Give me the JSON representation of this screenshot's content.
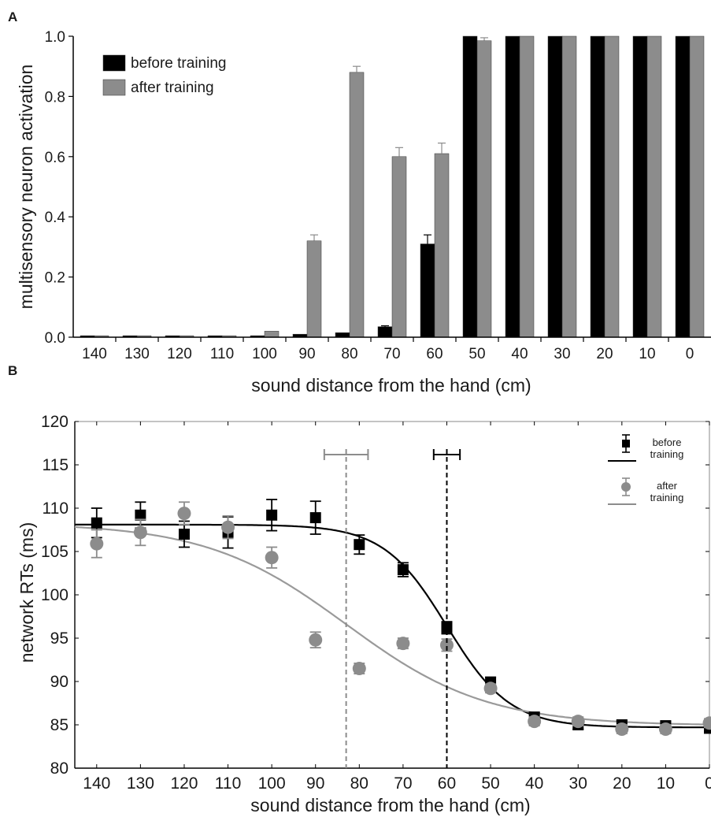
{
  "panels": {
    "a_label": "A",
    "b_label": "B"
  },
  "chart_data": [
    {
      "type": "bar",
      "panel": "A",
      "title": "",
      "xlabel": "sound distance from the hand (cm)",
      "ylabel": "multisensory neuron activation",
      "categories": [
        "140",
        "130",
        "120",
        "110",
        "100",
        "90",
        "80",
        "70",
        "60",
        "50",
        "40",
        "30",
        "20",
        "10",
        "0"
      ],
      "ylim": [
        0,
        1.0
      ],
      "yticks": [
        "0.0",
        "0.2",
        "0.4",
        "0.6",
        "0.8",
        "1.0"
      ],
      "legend_position": "top-left",
      "grid": false,
      "series": [
        {
          "name": "before training",
          "color": "#000000",
          "values": [
            0.005,
            0.005,
            0.005,
            0.005,
            0.005,
            0.01,
            0.015,
            0.035,
            0.31,
            1.0,
            1.0,
            1.0,
            1.0,
            1.0,
            1.0
          ],
          "errors": [
            0,
            0,
            0,
            0,
            0,
            0,
            0,
            0.003,
            0.03,
            0,
            0,
            0,
            0,
            0,
            0
          ]
        },
        {
          "name": "after training",
          "color": "#8c8c8c",
          "values": [
            0.005,
            0.005,
            0.005,
            0.005,
            0.02,
            0.32,
            0.88,
            0.6,
            0.61,
            0.985,
            1.0,
            1.0,
            1.0,
            1.0,
            1.0
          ],
          "errors": [
            0,
            0,
            0,
            0,
            0,
            0.02,
            0.02,
            0.03,
            0.035,
            0.01,
            0,
            0,
            0,
            0,
            0
          ]
        }
      ]
    },
    {
      "type": "scatter",
      "panel": "B",
      "title": "",
      "xlabel": "sound distance from the hand (cm)",
      "ylabel": "network RTs (ms)",
      "xlim": [
        145,
        0
      ],
      "ylim": [
        80,
        120
      ],
      "xticks": [
        "140",
        "130",
        "120",
        "110",
        "100",
        "90",
        "80",
        "70",
        "60",
        "50",
        "40",
        "30",
        "20",
        "10",
        "0"
      ],
      "yticks": [
        "80",
        "85",
        "90",
        "95",
        "100",
        "105",
        "110",
        "115",
        "120"
      ],
      "legend_position": "top-right",
      "grid": false,
      "series": [
        {
          "name": "before training",
          "color": "#000000",
          "marker": "square",
          "x": [
            140,
            130,
            120,
            110,
            100,
            90,
            80,
            70,
            60,
            50,
            40,
            30,
            20,
            10,
            0
          ],
          "y": [
            108.3,
            109.2,
            107.0,
            107.2,
            109.2,
            108.9,
            105.8,
            102.9,
            96.2,
            89.9,
            85.9,
            85.0,
            85.0,
            84.9,
            84.6
          ],
          "errors": [
            1.7,
            1.5,
            1.5,
            1.8,
            1.8,
            1.9,
            1.1,
            0.8,
            0.7,
            0.6,
            0.5,
            0.5,
            0.5,
            0.5,
            0.5
          ]
        },
        {
          "name": "after training",
          "color": "#8c8c8c",
          "marker": "circle",
          "x": [
            140,
            130,
            120,
            110,
            100,
            90,
            80,
            70,
            60,
            50,
            40,
            30,
            20,
            10,
            0
          ],
          "y": [
            105.9,
            107.2,
            109.4,
            107.8,
            104.3,
            94.8,
            91.5,
            94.4,
            94.2,
            89.2,
            85.4,
            85.4,
            84.5,
            84.5,
            85.2
          ],
          "errors": [
            1.6,
            1.5,
            1.3,
            1.3,
            1.2,
            0.9,
            0.6,
            0.6,
            0.7,
            0.5,
            0.5,
            0.5,
            0.5,
            0.5,
            0.5
          ]
        }
      ],
      "fit_curves": [
        {
          "series": "before training",
          "color": "#000000",
          "upper": 108.1,
          "lower": 84.7,
          "midpoint": 60,
          "slope": 7.2
        },
        {
          "series": "after training",
          "color": "#9a9a9a",
          "upper": 108.3,
          "lower": 84.9,
          "midpoint": 83,
          "slope": 16
        }
      ],
      "thresholds": [
        {
          "series": "before training",
          "color": "#000000",
          "x": 60,
          "err_low": 57,
          "err_high": 63
        },
        {
          "series": "after training",
          "color": "#8c8c8c",
          "x": 83,
          "err_low": 78,
          "err_high": 88
        }
      ],
      "legend": [
        {
          "text": "before\ntraining",
          "color": "#000000"
        },
        {
          "text": "after\ntraining",
          "color": "#8c8c8c"
        }
      ]
    }
  ]
}
